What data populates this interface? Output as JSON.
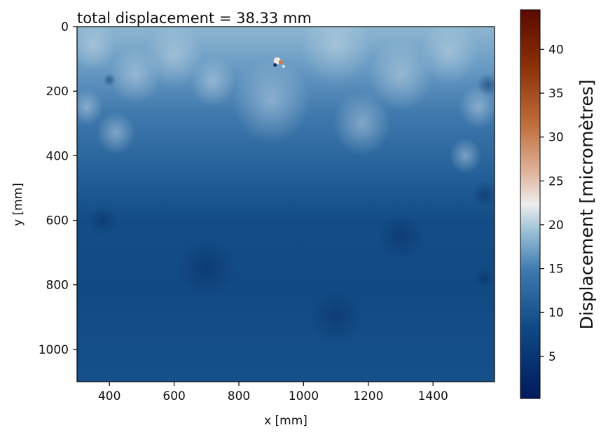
{
  "chart_data": {
    "type": "heatmap",
    "title": "total displacement = 38.33 mm",
    "xlabel": "x [mm]",
    "ylabel": "y [mm]",
    "xlim": [
      300,
      1590
    ],
    "ylim": [
      1100,
      0
    ],
    "x_ticks": [
      400,
      600,
      800,
      1000,
      1200,
      1400
    ],
    "y_ticks": [
      0,
      200,
      400,
      600,
      800,
      1000
    ],
    "colorbar": {
      "label": "Displacement  [micromètres]",
      "range": [
        0.2,
        44.5
      ],
      "ticks": [
        5,
        10,
        15,
        20,
        25,
        30,
        35,
        40
      ],
      "colormap": "vik",
      "colors": {
        "low": "#001a5c",
        "mid_low": "#1f5f9a",
        "mid": "#e6eef2",
        "mid_high": "#d08c5c",
        "high": "#5a0a00"
      }
    },
    "field_summary": {
      "top_region_value": 16,
      "middle_region_value": 9,
      "bottom_region_value": 7,
      "hotspot": {
        "x": 925,
        "y": 110,
        "value": 40
      }
    }
  }
}
